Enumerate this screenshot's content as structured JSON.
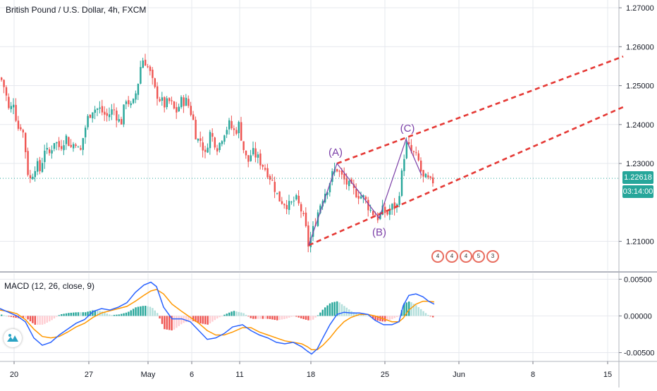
{
  "header": {
    "symbol_title": "British Pound / U.S. Dollar, 4h, FXCM"
  },
  "indicator": {
    "label": "MACD (12, 26, close, 9)"
  },
  "price_tags": {
    "last_price": "1.22618",
    "countdown": "03:14:00",
    "last_price_color": "#26a69a"
  },
  "events": [
    "4",
    "4",
    "4",
    "5",
    "3"
  ],
  "colors": {
    "bull": "#26a69a",
    "bear": "#ef5350",
    "trendline": "#e53935",
    "wave": "#7b3fa7",
    "macd_line": "#2962ff",
    "signal_line": "#ff9800",
    "grid": "#e6e8ee",
    "lastprice_line": "#26a69a"
  },
  "chart_data": [
    {
      "type": "candlestick",
      "x_ticks": [
        "20",
        "27",
        "May",
        "6",
        "11",
        "18",
        "25",
        "Jun",
        "8",
        "15"
      ],
      "ylim": [
        1.2025,
        1.272
      ],
      "y_ticks": [
        "1.27000",
        "1.26000",
        "1.25000",
        "1.24000",
        "1.23000",
        "1.21000"
      ],
      "last_price": 1.22618,
      "close_path": [
        [
          0,
          1.252
        ],
        [
          6,
          1.249
        ],
        [
          12,
          1.243
        ],
        [
          18,
          1.246
        ],
        [
          24,
          1.239
        ],
        [
          30,
          1.24
        ],
        [
          36,
          1.232
        ],
        [
          40,
          1.225
        ],
        [
          44,
          1.227
        ],
        [
          50,
          1.23
        ],
        [
          56,
          1.228
        ],
        [
          62,
          1.234
        ],
        [
          68,
          1.232
        ],
        [
          76,
          1.236
        ],
        [
          84,
          1.234
        ],
        [
          92,
          1.237
        ],
        [
          100,
          1.234
        ],
        [
          106,
          1.236
        ],
        [
          112,
          1.232
        ],
        [
          118,
          1.238
        ],
        [
          124,
          1.242
        ],
        [
          130,
          1.244
        ],
        [
          140,
          1.244
        ],
        [
          150,
          1.242
        ],
        [
          160,
          1.244
        ],
        [
          170,
          1.24
        ],
        [
          178,
          1.247
        ],
        [
          186,
          1.244
        ],
        [
          194,
          1.25
        ],
        [
          200,
          1.257
        ],
        [
          206,
          1.256
        ],
        [
          212,
          1.253
        ],
        [
          218,
          1.249
        ],
        [
          224,
          1.247
        ],
        [
          232,
          1.245
        ],
        [
          240,
          1.246
        ],
        [
          248,
          1.243
        ],
        [
          256,
          1.246
        ],
        [
          264,
          1.246
        ],
        [
          272,
          1.242
        ],
        [
          278,
          1.236
        ],
        [
          284,
          1.236
        ],
        [
          290,
          1.232
        ],
        [
          296,
          1.238
        ],
        [
          302,
          1.236
        ],
        [
          308,
          1.234
        ],
        [
          316,
          1.238
        ],
        [
          324,
          1.24
        ],
        [
          332,
          1.238
        ],
        [
          338,
          1.24
        ],
        [
          344,
          1.234
        ],
        [
          350,
          1.23
        ],
        [
          356,
          1.233
        ],
        [
          362,
          1.232
        ],
        [
          370,
          1.23
        ],
        [
          378,
          1.228
        ],
        [
          386,
          1.225
        ],
        [
          394,
          1.221
        ],
        [
          402,
          1.22
        ],
        [
          410,
          1.219
        ],
        [
          418,
          1.221
        ],
        [
          426,
          1.218
        ],
        [
          432,
          1.214
        ],
        [
          436,
          1.209
        ],
        [
          440,
          1.211
        ],
        [
          446,
          1.215
        ],
        [
          452,
          1.219
        ],
        [
          458,
          1.222
        ],
        [
          464,
          1.224
        ],
        [
          470,
          1.227
        ],
        [
          476,
          1.229
        ],
        [
          482,
          1.227
        ],
        [
          490,
          1.225
        ],
        [
          500,
          1.223
        ],
        [
          508,
          1.222
        ],
        [
          516,
          1.221
        ],
        [
          524,
          1.218
        ],
        [
          530,
          1.217
        ],
        [
          536,
          1.216
        ],
        [
          542,
          1.218
        ],
        [
          548,
          1.217
        ],
        [
          556,
          1.219
        ],
        [
          562,
          1.219
        ],
        [
          568,
          1.226
        ],
        [
          572,
          1.232
        ],
        [
          576,
          1.235
        ],
        [
          582,
          1.233
        ],
        [
          588,
          1.232
        ],
        [
          594,
          1.23
        ],
        [
          598,
          1.226
        ],
        [
          604,
          1.226
        ],
        [
          610,
          1.225
        ],
        [
          616,
          1.226
        ]
      ],
      "trendlines": [
        {
          "from": [
            438,
            1.209
          ],
          "to": [
            884,
            1.2445
          ]
        },
        {
          "from": [
            478,
            1.23
          ],
          "to": [
            884,
            1.2575
          ]
        }
      ],
      "wave_points": [
        [
          438,
          1.209
        ],
        [
          478,
          1.23
        ],
        [
          538,
          1.216
        ],
        [
          576,
          1.2362
        ],
        [
          598,
          1.227
        ]
      ],
      "wave_labels": [
        {
          "text": "(A)",
          "x": 476,
          "y": 1.232
        },
        {
          "text": "(B)",
          "x": 538,
          "y": 1.2115
        },
        {
          "text": "(C)",
          "x": 578,
          "y": 1.2382
        }
      ]
    },
    {
      "type": "macd",
      "ylim": [
        -0.0062,
        0.0058
      ],
      "y_ticks": [
        "0.00500",
        "0.00000",
        "-0.00500"
      ],
      "macd_line": [
        [
          0,
          0.001
        ],
        [
          12,
          0.0005
        ],
        [
          24,
          0.0
        ],
        [
          36,
          -0.0008
        ],
        [
          48,
          -0.003
        ],
        [
          60,
          -0.004
        ],
        [
          72,
          -0.0036
        ],
        [
          84,
          -0.0026
        ],
        [
          96,
          -0.0018
        ],
        [
          108,
          -0.001
        ],
        [
          120,
          -0.0005
        ],
        [
          132,
          0.0006
        ],
        [
          144,
          0.001
        ],
        [
          156,
          0.0008
        ],
        [
          168,
          0.0012
        ],
        [
          180,
          0.0018
        ],
        [
          192,
          0.0032
        ],
        [
          204,
          0.0042
        ],
        [
          214,
          0.0046
        ],
        [
          222,
          0.004
        ],
        [
          232,
          0.0012
        ],
        [
          244,
          -0.0004
        ],
        [
          258,
          -0.0004
        ],
        [
          270,
          -0.0008
        ],
        [
          282,
          -0.002
        ],
        [
          294,
          -0.0032
        ],
        [
          306,
          -0.003
        ],
        [
          318,
          -0.0024
        ],
        [
          330,
          -0.0015
        ],
        [
          344,
          -0.0012
        ],
        [
          356,
          -0.002
        ],
        [
          368,
          -0.0026
        ],
        [
          380,
          -0.003
        ],
        [
          392,
          -0.0036
        ],
        [
          404,
          -0.0038
        ],
        [
          416,
          -0.0036
        ],
        [
          428,
          -0.0042
        ],
        [
          436,
          -0.0048
        ],
        [
          442,
          -0.0052
        ],
        [
          450,
          -0.0045
        ],
        [
          458,
          -0.003
        ],
        [
          468,
          -0.0012
        ],
        [
          478,
          0.0002
        ],
        [
          488,
          0.0005
        ],
        [
          498,
          0.0004
        ],
        [
          510,
          0.0004
        ],
        [
          522,
          0.0002
        ],
        [
          532,
          -0.0006
        ],
        [
          544,
          -0.0012
        ],
        [
          556,
          -0.0012
        ],
        [
          566,
          -0.0008
        ],
        [
          572,
          0.0014
        ],
        [
          580,
          0.0028
        ],
        [
          590,
          0.003
        ],
        [
          600,
          0.0026
        ],
        [
          608,
          0.002
        ],
        [
          616,
          0.0016
        ]
      ],
      "signal_line": [
        [
          0,
          0.0008
        ],
        [
          12,
          0.0006
        ],
        [
          24,
          0.0003
        ],
        [
          36,
          -0.0005
        ],
        [
          48,
          -0.0018
        ],
        [
          60,
          -0.0028
        ],
        [
          72,
          -0.003
        ],
        [
          84,
          -0.0028
        ],
        [
          96,
          -0.0022
        ],
        [
          108,
          -0.0015
        ],
        [
          120,
          -0.001
        ],
        [
          132,
          -0.0002
        ],
        [
          144,
          0.0004
        ],
        [
          156,
          0.0007
        ],
        [
          168,
          0.001
        ],
        [
          180,
          0.0013
        ],
        [
          192,
          0.002
        ],
        [
          204,
          0.0028
        ],
        [
          214,
          0.0034
        ],
        [
          222,
          0.0036
        ],
        [
          232,
          0.003
        ],
        [
          244,
          0.0016
        ],
        [
          258,
          0.0006
        ],
        [
          270,
          -0.0002
        ],
        [
          282,
          -0.001
        ],
        [
          294,
          -0.002
        ],
        [
          306,
          -0.0026
        ],
        [
          318,
          -0.0026
        ],
        [
          330,
          -0.0022
        ],
        [
          344,
          -0.0016
        ],
        [
          356,
          -0.0016
        ],
        [
          368,
          -0.0022
        ],
        [
          380,
          -0.0026
        ],
        [
          392,
          -0.003
        ],
        [
          404,
          -0.0034
        ],
        [
          416,
          -0.0036
        ],
        [
          428,
          -0.0038
        ],
        [
          436,
          -0.0042
        ],
        [
          442,
          -0.0046
        ],
        [
          450,
          -0.0046
        ],
        [
          458,
          -0.004
        ],
        [
          468,
          -0.003
        ],
        [
          478,
          -0.0018
        ],
        [
          488,
          -0.0008
        ],
        [
          498,
          -0.0002
        ],
        [
          510,
          0.0002
        ],
        [
          522,
          0.0002
        ],
        [
          532,
          0.0
        ],
        [
          544,
          -0.0004
        ],
        [
          556,
          -0.0008
        ],
        [
          566,
          -0.0008
        ],
        [
          572,
          -0.0003
        ],
        [
          580,
          0.0008
        ],
        [
          590,
          0.0016
        ],
        [
          600,
          0.002
        ],
        [
          608,
          0.002
        ],
        [
          616,
          0.0019
        ]
      ]
    }
  ]
}
